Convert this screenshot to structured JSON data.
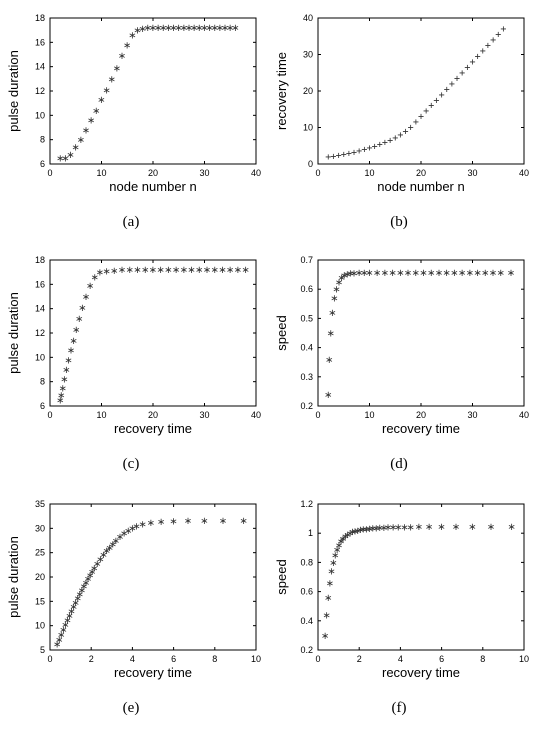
{
  "chart_data": [
    {
      "type": "scatter",
      "caption": "(a)",
      "xlabel": "node number  n",
      "ylabel": "pulse duration",
      "xlim": [
        0,
        40
      ],
      "ylim": [
        6,
        18
      ],
      "xticks": [
        0,
        10,
        20,
        30,
        40
      ],
      "yticks": [
        6,
        8,
        10,
        12,
        14,
        16,
        18
      ],
      "marker": "star",
      "x": [
        2,
        3,
        4,
        5,
        6,
        7,
        8,
        9,
        10,
        11,
        12,
        13,
        14,
        15,
        16,
        17,
        18,
        19,
        20,
        21,
        22,
        23,
        24,
        25,
        26,
        27,
        28,
        29,
        30,
        31,
        32,
        33,
        34,
        35,
        36
      ],
      "y": [
        6.5,
        6.5,
        6.8,
        7.4,
        8.0,
        8.8,
        9.6,
        10.4,
        11.3,
        12.1,
        13.0,
        13.9,
        14.9,
        15.8,
        16.6,
        17.0,
        17.15,
        17.2,
        17.2,
        17.2,
        17.2,
        17.2,
        17.2,
        17.2,
        17.2,
        17.2,
        17.2,
        17.2,
        17.2,
        17.2,
        17.2,
        17.2,
        17.2,
        17.2,
        17.2
      ]
    },
    {
      "type": "scatter",
      "caption": "(b)",
      "xlabel": "node number n",
      "ylabel": "recovery time",
      "xlim": [
        0,
        40
      ],
      "ylim": [
        0,
        40
      ],
      "xticks": [
        0,
        10,
        20,
        30,
        40
      ],
      "yticks": [
        0,
        10,
        20,
        30,
        40
      ],
      "marker": "plus",
      "x": [
        2,
        3,
        4,
        5,
        6,
        7,
        8,
        9,
        10,
        11,
        12,
        13,
        14,
        15,
        16,
        17,
        18,
        19,
        20,
        21,
        22,
        23,
        24,
        25,
        26,
        27,
        28,
        29,
        30,
        31,
        32,
        33,
        34,
        35,
        36
      ],
      "y": [
        2.0,
        2.2,
        2.4,
        2.7,
        3.0,
        3.3,
        3.7,
        4.1,
        4.5,
        5.0,
        5.5,
        6.0,
        6.6,
        7.3,
        8.1,
        9.0,
        10.2,
        11.6,
        13.1,
        14.6,
        16.1,
        17.6,
        19.1,
        20.6,
        22.1,
        23.6,
        25.1,
        26.6,
        28.1,
        29.6,
        31.1,
        32.6,
        34.1,
        35.6,
        37.1
      ]
    },
    {
      "type": "scatter",
      "caption": "(c)",
      "xlabel": "recovery time",
      "ylabel": "pulse duration",
      "xlim": [
        0,
        40
      ],
      "ylim": [
        6,
        18
      ],
      "xticks": [
        0,
        10,
        20,
        30,
        40
      ],
      "yticks": [
        6,
        8,
        10,
        12,
        14,
        16,
        18
      ],
      "marker": "star",
      "x": [
        2.0,
        2.2,
        2.5,
        2.8,
        3.2,
        3.6,
        4.1,
        4.6,
        5.1,
        5.7,
        6.3,
        7.0,
        7.8,
        8.7,
        9.7,
        11,
        12.5,
        14,
        15.5,
        17,
        18.5,
        20,
        21.5,
        23,
        24.5,
        26,
        27.5,
        29,
        30.5,
        32,
        33.5,
        35,
        36.5,
        38
      ],
      "y": [
        6.5,
        6.9,
        7.5,
        8.2,
        9.0,
        9.8,
        10.6,
        11.4,
        12.3,
        13.2,
        14.1,
        15.0,
        15.9,
        16.6,
        17.0,
        17.1,
        17.15,
        17.2,
        17.2,
        17.2,
        17.2,
        17.2,
        17.2,
        17.2,
        17.2,
        17.2,
        17.2,
        17.2,
        17.2,
        17.2,
        17.2,
        17.2,
        17.2,
        17.2
      ]
    },
    {
      "type": "scatter",
      "caption": "(d)",
      "xlabel": "recovery time",
      "ylabel": "speed",
      "xlim": [
        0,
        40
      ],
      "ylim": [
        0.2,
        0.7
      ],
      "xticks": [
        0,
        10,
        20,
        30,
        40
      ],
      "yticks": [
        0.2,
        0.3,
        0.4,
        0.5,
        0.6,
        0.7
      ],
      "marker": "star",
      "x": [
        2.0,
        2.2,
        2.5,
        2.8,
        3.2,
        3.6,
        4.1,
        4.6,
        5.1,
        5.7,
        6.3,
        7.0,
        8,
        9,
        10,
        11.5,
        13,
        14.5,
        16,
        17.5,
        19,
        20.5,
        22,
        23.5,
        25,
        26.5,
        28,
        29.5,
        31,
        32.5,
        34,
        35.5,
        37.5
      ],
      "y": [
        0.24,
        0.36,
        0.45,
        0.52,
        0.57,
        0.6,
        0.625,
        0.64,
        0.648,
        0.652,
        0.655,
        0.656,
        0.657,
        0.657,
        0.657,
        0.657,
        0.657,
        0.657,
        0.657,
        0.657,
        0.657,
        0.657,
        0.657,
        0.657,
        0.657,
        0.657,
        0.657,
        0.657,
        0.657,
        0.657,
        0.657,
        0.657,
        0.657
      ]
    },
    {
      "type": "scatter",
      "caption": "(e)",
      "xlabel": "recovery time",
      "ylabel": "pulse duration",
      "xlim": [
        0,
        10
      ],
      "ylim": [
        5,
        35
      ],
      "xticks": [
        0,
        2,
        4,
        6,
        8,
        10
      ],
      "yticks": [
        5,
        10,
        15,
        20,
        25,
        30,
        35
      ],
      "marker": "star",
      "x": [
        0.35,
        0.45,
        0.55,
        0.65,
        0.75,
        0.85,
        0.95,
        1.05,
        1.15,
        1.25,
        1.35,
        1.45,
        1.55,
        1.65,
        1.75,
        1.85,
        1.95,
        2.05,
        2.15,
        2.3,
        2.45,
        2.6,
        2.75,
        2.9,
        3.05,
        3.2,
        3.4,
        3.6,
        3.8,
        4.0,
        4.2,
        4.5,
        4.9,
        5.4,
        6.0,
        6.7,
        7.5,
        8.4,
        9.4
      ],
      "y": [
        6.2,
        7.2,
        8.2,
        9.2,
        10.2,
        11.2,
        12.1,
        13.0,
        13.9,
        14.8,
        15.7,
        16.5,
        17.3,
        18.1,
        18.9,
        19.7,
        20.4,
        21.1,
        21.8,
        22.8,
        23.7,
        24.6,
        25.4,
        26.1,
        26.8,
        27.5,
        28.3,
        29.0,
        29.6,
        30.1,
        30.5,
        30.9,
        31.2,
        31.4,
        31.5,
        31.6,
        31.6,
        31.6,
        31.6
      ]
    },
    {
      "type": "scatter",
      "caption": "(f)",
      "xlabel": "recovery time",
      "ylabel": "speed",
      "xlim": [
        0,
        10
      ],
      "ylim": [
        0.2,
        1.2
      ],
      "xticks": [
        0,
        2,
        4,
        6,
        8,
        10
      ],
      "yticks": [
        0.2,
        0.4,
        0.6,
        0.8,
        1,
        1.2
      ],
      "marker": "star",
      "x": [
        0.35,
        0.42,
        0.5,
        0.58,
        0.66,
        0.75,
        0.84,
        0.93,
        1.02,
        1.12,
        1.22,
        1.33,
        1.44,
        1.56,
        1.68,
        1.8,
        1.93,
        2.06,
        2.2,
        2.35,
        2.5,
        2.66,
        2.83,
        3.0,
        3.2,
        3.4,
        3.65,
        3.9,
        4.2,
        4.5,
        4.9,
        5.4,
        6.0,
        6.7,
        7.5,
        8.4,
        9.4
      ],
      "y": [
        0.3,
        0.44,
        0.56,
        0.66,
        0.74,
        0.8,
        0.85,
        0.89,
        0.92,
        0.945,
        0.965,
        0.98,
        0.99,
        1.0,
        1.01,
        1.015,
        1.02,
        1.025,
        1.028,
        1.03,
        1.033,
        1.035,
        1.037,
        1.038,
        1.04,
        1.041,
        1.042,
        1.043,
        1.044,
        1.044,
        1.045,
        1.045,
        1.045,
        1.045,
        1.045,
        1.045,
        1.045
      ]
    }
  ]
}
